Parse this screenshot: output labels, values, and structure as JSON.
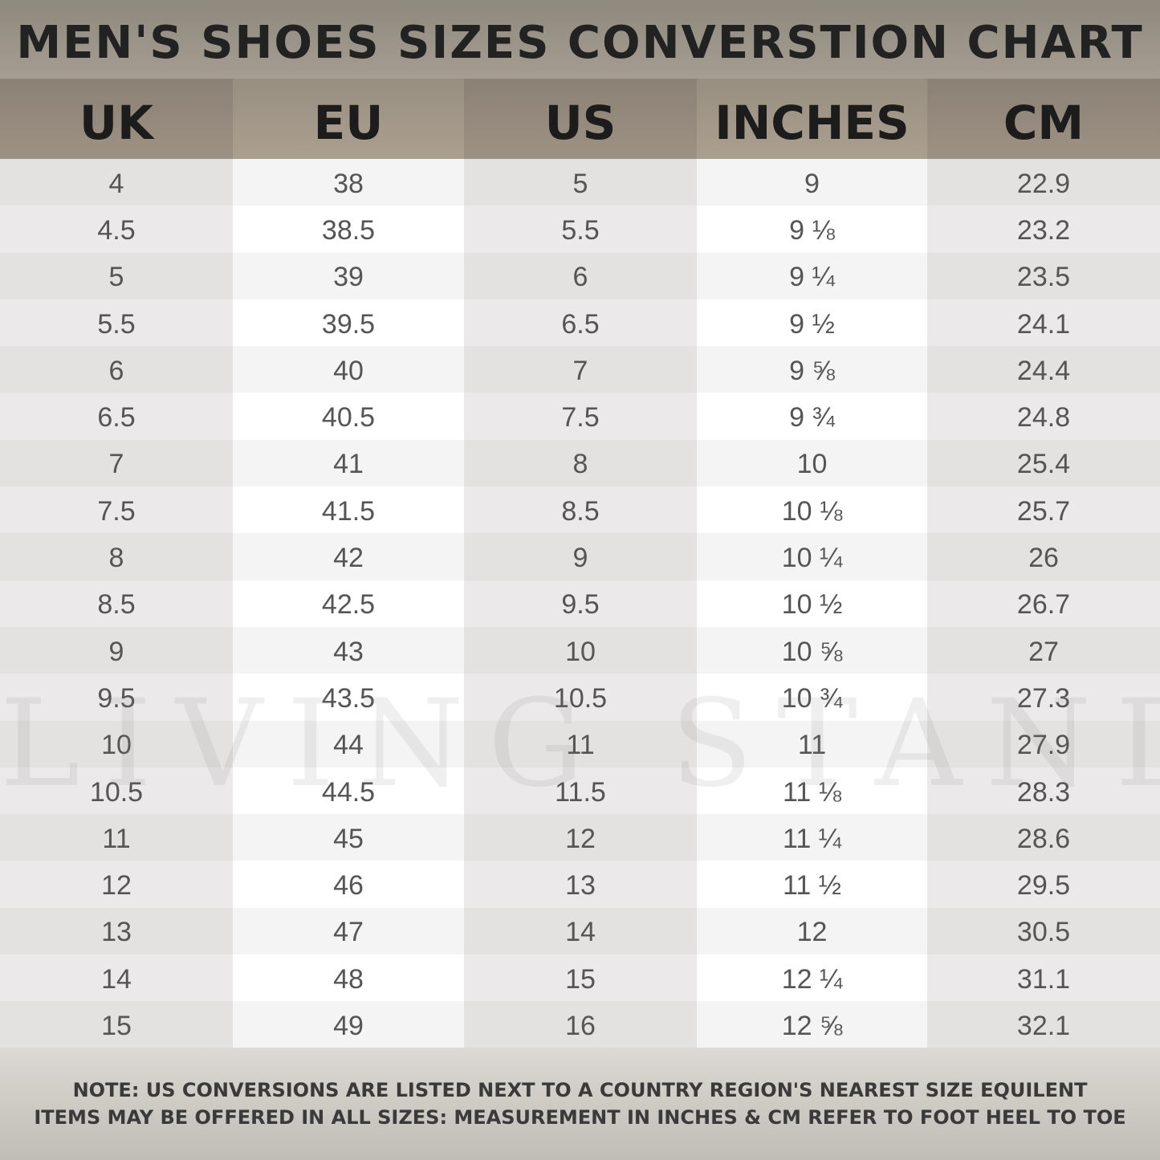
{
  "title": "MEN'S SHOES SIZES CONVERSTION CHART",
  "columns": [
    "UK",
    "EU",
    "US",
    "INCHES",
    "CM"
  ],
  "rows": [
    [
      "4",
      "38",
      "5",
      "9",
      "22.9"
    ],
    [
      "4.5",
      "38.5",
      "5.5",
      "9 ⅛",
      "23.2"
    ],
    [
      "5",
      "39",
      "6",
      "9 ¼",
      "23.5"
    ],
    [
      "5.5",
      "39.5",
      "6.5",
      "9 ½",
      "24.1"
    ],
    [
      "6",
      "40",
      "7",
      "9 ⅝",
      "24.4"
    ],
    [
      "6.5",
      "40.5",
      "7.5",
      "9 ¾",
      "24.8"
    ],
    [
      "7",
      "41",
      "8",
      "10",
      "25.4"
    ],
    [
      "7.5",
      "41.5",
      "8.5",
      "10 ⅛",
      "25.7"
    ],
    [
      "8",
      "42",
      "9",
      "10 ¼",
      "26"
    ],
    [
      "8.5",
      "42.5",
      "9.5",
      "10 ½",
      "26.7"
    ],
    [
      "9",
      "43",
      "10",
      "10 ⅝",
      "27"
    ],
    [
      "9.5",
      "43.5",
      "10.5",
      "10 ¾",
      "27.3"
    ],
    [
      "10",
      "44",
      "11",
      "11",
      "27.9"
    ],
    [
      "10.5",
      "44.5",
      "11.5",
      "11 ⅛",
      "28.3"
    ],
    [
      "11",
      "45",
      "12",
      "11 ¼",
      "28.6"
    ],
    [
      "12",
      "46",
      "13",
      "11 ½",
      "29.5"
    ],
    [
      "13",
      "47",
      "14",
      "12",
      "30.5"
    ],
    [
      "14",
      "48",
      "15",
      "12 ¼",
      "31.1"
    ],
    [
      "15",
      "49",
      "16",
      "12 ⅝",
      "32.1"
    ]
  ],
  "watermark": "LIVING STANDARD",
  "note": {
    "label": "NOTE:",
    "line1": " US CONVERSIONS ARE LISTED NEXT TO A COUNTRY REGION'S NEAREST SIZE EQUILENT",
    "line2": "ITEMS MAY BE OFFERED IN ALL SIZES: MEASUREMENT IN INCHES & CM REFER TO FOOT HEEL TO TOE"
  },
  "colors": {
    "title_band": "#8e897d",
    "header": "#9d9284",
    "text": "#555555",
    "heading_text": "#1c1c1c"
  }
}
